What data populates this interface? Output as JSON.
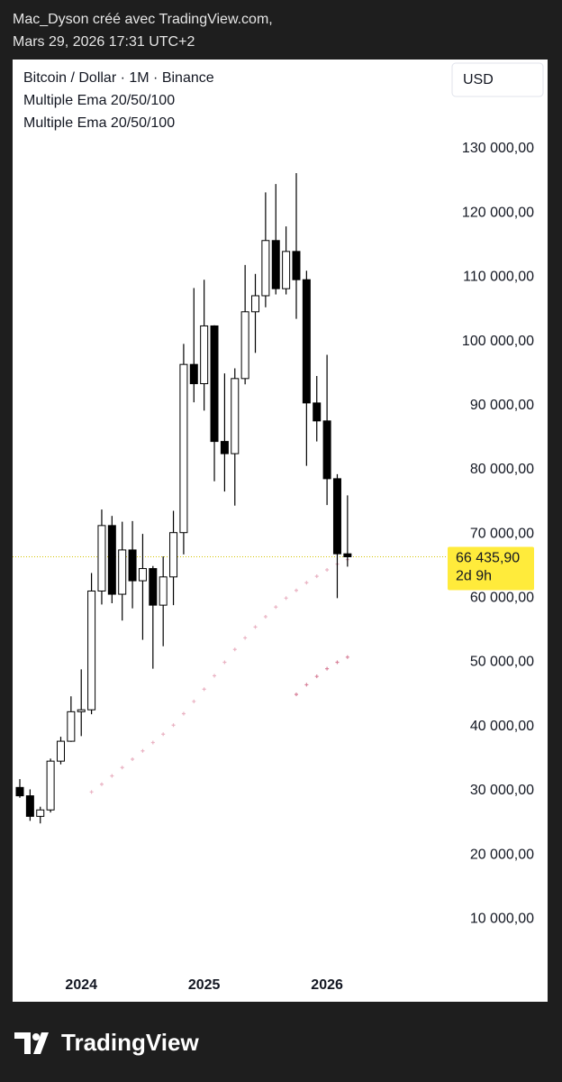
{
  "header": {
    "line1": "Mac_Dyson créé avec TradingView.com,",
    "line2": "Mars 29, 2026 17:31 UTC+2"
  },
  "chart_data": {
    "type": "candlestick",
    "legend": [
      "Bitcoin / Dollar · 1M · Binance",
      "Multiple Ema 20/50/100",
      "Multiple Ema 20/50/100"
    ],
    "currency_button": "USD",
    "categories": [
      null,
      null,
      null,
      null,
      null,
      null,
      "2024",
      null,
      null,
      null,
      null,
      null,
      null,
      null,
      null,
      null,
      null,
      null,
      "2025",
      null,
      null,
      null,
      null,
      null,
      null,
      null,
      null,
      null,
      null,
      null,
      "2026",
      null,
      null
    ],
    "open": [
      30500,
      29200,
      26000,
      27000,
      34600,
      37700,
      42300,
      42600,
      61100,
      71300,
      60600,
      67500,
      62700,
      64600,
      58900,
      63300,
      70200,
      96400,
      93400,
      102400,
      84400,
      82500,
      94200,
      104600,
      107100,
      115700,
      108200,
      114000,
      109600,
      90400,
      87600,
      78600,
      66900
    ],
    "high": [
      31800,
      30200,
      27500,
      35000,
      38400,
      44700,
      48900,
      63900,
      73800,
      72800,
      71900,
      72000,
      70000,
      65000,
      66500,
      73600,
      99600,
      108300,
      109600,
      102500,
      95000,
      95800,
      111900,
      110500,
      123200,
      124500,
      117900,
      126200,
      111000,
      94600,
      97900,
      79300,
      76000
    ],
    "low": [
      28900,
      25300,
      24900,
      26600,
      34100,
      37600,
      38500,
      41900,
      59000,
      59200,
      56500,
      58400,
      53500,
      49000,
      52500,
      58900,
      66800,
      90500,
      89200,
      78200,
      76600,
      74400,
      93300,
      98200,
      105300,
      107300,
      107300,
      103500,
      80600,
      84400,
      74500,
      60000,
      64900
    ],
    "close": [
      29200,
      26000,
      27000,
      34600,
      37700,
      42300,
      42600,
      61100,
      71300,
      60600,
      67500,
      62700,
      64600,
      58900,
      63300,
      70200,
      96400,
      93400,
      102400,
      84400,
      82500,
      94200,
      104600,
      107100,
      115700,
      108200,
      114000,
      109600,
      90400,
      87600,
      78600,
      66900,
      66435.9
    ],
    "up_color": "#ffffff",
    "down_color": "#000000",
    "border_color": "#000000",
    "ema_series": [
      {
        "color": "#eab3c3",
        "values": [
          null,
          null,
          null,
          null,
          null,
          null,
          null,
          29800,
          31000,
          32300,
          33600,
          34900,
          36200,
          37500,
          38800,
          40200,
          42000,
          43900,
          45800,
          47900,
          50000,
          52000,
          53800,
          55500,
          57100,
          58600,
          60000,
          61200,
          62400,
          63400,
          64400,
          65300,
          66000
        ]
      },
      {
        "color": "#d9849c",
        "values": [
          null,
          null,
          null,
          null,
          null,
          null,
          null,
          null,
          null,
          null,
          null,
          null,
          null,
          null,
          null,
          null,
          null,
          null,
          null,
          null,
          null,
          null,
          null,
          null,
          null,
          null,
          null,
          45000,
          46500,
          47800,
          49000,
          50000,
          50800
        ]
      }
    ],
    "ylim": [
      4000,
      138000
    ],
    "yticks": [
      {
        "value": 10000,
        "label": "10 000,00"
      },
      {
        "value": 20000,
        "label": "20 000,00"
      },
      {
        "value": 30000,
        "label": "30 000,00"
      },
      {
        "value": 40000,
        "label": "40 000,00"
      },
      {
        "value": 50000,
        "label": "50 000,00"
      },
      {
        "value": 60000,
        "label": "60 000,00"
      },
      {
        "value": 70000,
        "label": "70 000,00"
      },
      {
        "value": 80000,
        "label": "80 000,00"
      },
      {
        "value": 90000,
        "label": "90 000,00"
      },
      {
        "value": 100000,
        "label": "100 000,00"
      },
      {
        "value": 110000,
        "label": "110 000,00"
      },
      {
        "value": 120000,
        "label": "120 000,00"
      },
      {
        "value": 130000,
        "label": "130 000,00"
      }
    ],
    "last_price": {
      "value": 66435.9,
      "label": "66 435,90",
      "countdown": "2d 9h",
      "color": "#ffeb3b"
    }
  },
  "footer": {
    "brand": "TradingView"
  }
}
